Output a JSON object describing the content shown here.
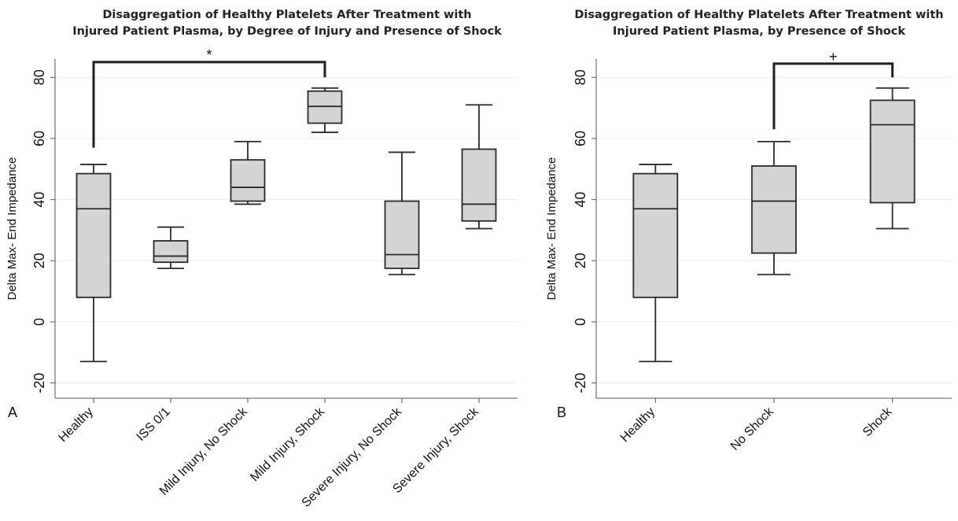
{
  "chart_data": [
    {
      "type": "box",
      "panel_label": "A",
      "title_lines": [
        "Disaggregation of Healthy Platelets After Treatment with",
        "Injured Patient Plasma, by Degree of Injury and Presence of Shock"
      ],
      "ylabel": "Delta Max- End Impedance",
      "xlabel": "",
      "ylim": [
        -25,
        86
      ],
      "yticks": [
        -20,
        0,
        20,
        40,
        60,
        80
      ],
      "grid": true,
      "categories": [
        "Healthy",
        "ISS 0/1",
        "Mild Injury, No Shock",
        "Mild Injury, Shock",
        "Severe Injury, No Shock",
        "Severe Injury, Shock"
      ],
      "boxes": [
        {
          "min": -13,
          "q1": 8,
          "median": 37,
          "q3": 48.5,
          "max": 51.5
        },
        {
          "min": 17.5,
          "q1": 19.5,
          "median": 21.5,
          "q3": 26.5,
          "max": 31
        },
        {
          "min": 38.5,
          "q1": 39.5,
          "median": 44,
          "q3": 53,
          "max": 59
        },
        {
          "min": 62,
          "q1": 65,
          "median": 70.5,
          "q3": 75.5,
          "max": 76.5
        },
        {
          "min": 15.5,
          "q1": 17.5,
          "median": 22,
          "q3": 39.5,
          "max": 55.5
        },
        {
          "min": 30.5,
          "q1": 33,
          "median": 38.5,
          "q3": 56.5,
          "max": 71
        }
      ],
      "significance": {
        "from": 0,
        "to": 3,
        "y": 85,
        "from_y": 57,
        "to_y": 80,
        "symbol": "*"
      }
    },
    {
      "type": "box",
      "panel_label": "B",
      "title_lines": [
        "Disaggregation of Healthy Platelets After Treatment with",
        "Injured Patient Plasma, by Presence of Shock"
      ],
      "ylabel": "Delta Max- End Impedance",
      "xlabel": "",
      "ylim": [
        -25,
        86
      ],
      "yticks": [
        -20,
        0,
        20,
        40,
        60,
        80
      ],
      "grid": true,
      "categories": [
        "Healthy",
        "No Shock",
        "Shock"
      ],
      "boxes": [
        {
          "min": -13,
          "q1": 8,
          "median": 37,
          "q3": 48.5,
          "max": 51.5
        },
        {
          "min": 15.5,
          "q1": 22.5,
          "median": 39.5,
          "q3": 51,
          "max": 59
        },
        {
          "min": 30.5,
          "q1": 39,
          "median": 64.5,
          "q3": 72.5,
          "max": 76.5
        }
      ],
      "significance": {
        "from": 1,
        "to": 2,
        "y": 84.5,
        "from_y": 63,
        "to_y": 80,
        "symbol": "+"
      }
    }
  ],
  "colors": {
    "box_fill": "#d4d4d4",
    "stroke": "#2b2b2b",
    "grid": "#ececec",
    "axis": "#555555"
  }
}
